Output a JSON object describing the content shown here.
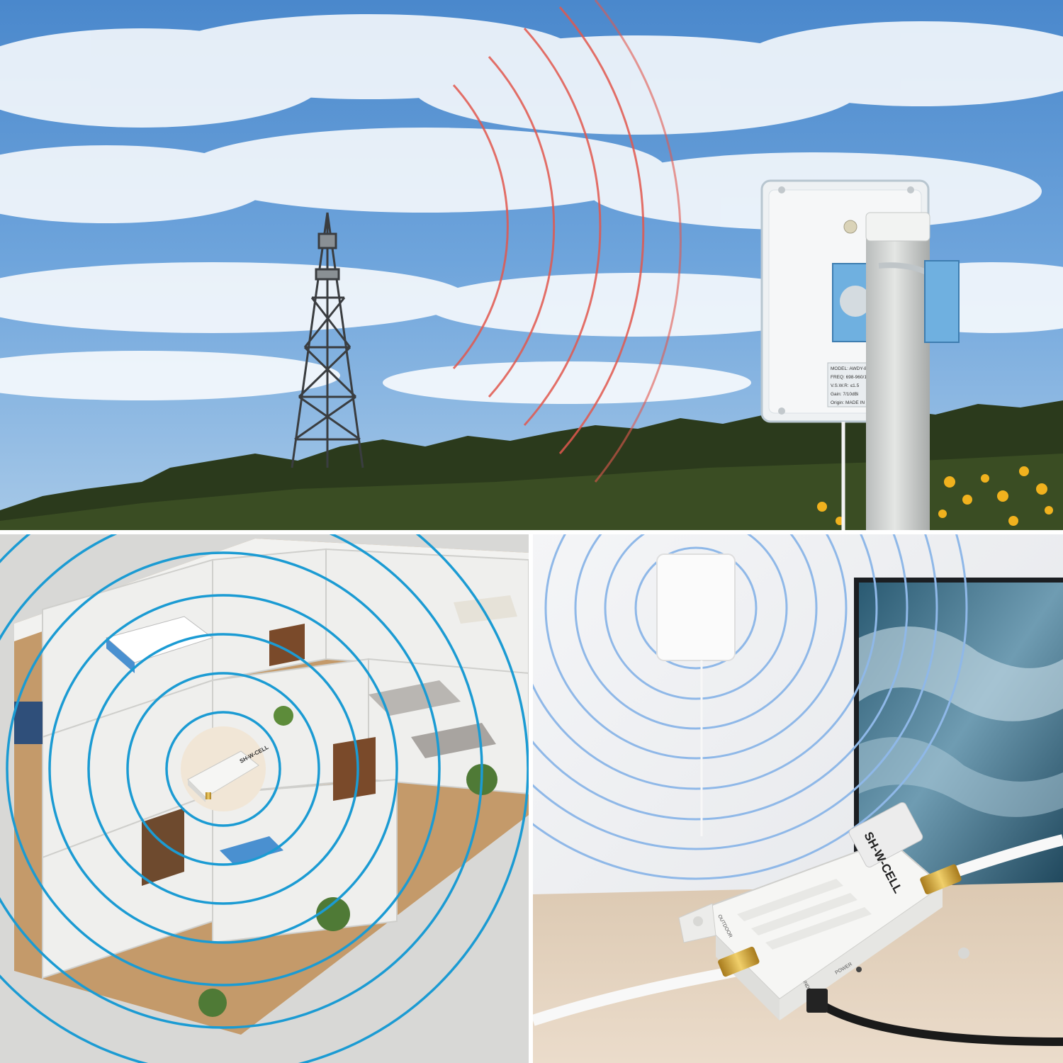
{
  "panels": {
    "outdoor": {
      "name": "outdoor-antenna-scene"
    },
    "floorplan": {
      "name": "floorplan-coverage-scene"
    },
    "indoor": {
      "name": "indoor-antenna-scene"
    }
  },
  "booster": {
    "brand_label": "SH-W-CELL",
    "port_out_label": "OUTDOOR",
    "port_in_label": "INDOOR",
    "power_label": "POWER"
  },
  "outdoor_antenna_label": {
    "lines": [
      "MODEL: AWDY-800-2600-",
      "FREQ: 698-960/1710-2690M",
      "V.S.W.R: ≤1.5",
      "Gain: 7/10dBi",
      "Origin: MADE IN CHINA"
    ]
  },
  "colors": {
    "sky_top": "#4f8fd0",
    "sky_bottom": "#a9cbe8",
    "signal_red": "#e2584e",
    "signal_blue": "#1b9bd3",
    "signal_light_blue": "#8fb8e8",
    "device_white": "#f4f4f2",
    "connector_gold": "#c99a2e"
  }
}
